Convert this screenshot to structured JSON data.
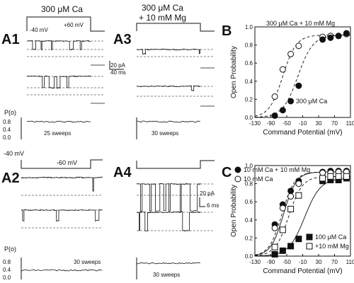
{
  "figure": {
    "panels": {
      "A1": {
        "letter": "A1",
        "condition": "300 μM Ca",
        "holding_label": "-40 mV",
        "step_label": "+60 mV",
        "po_label": "P(o)",
        "po_ticks": [
          "0.8",
          "0.4",
          "0.0"
        ],
        "sweeps_label": "25 sweeps",
        "scale_current": "20 pA",
        "scale_time": "40 ms"
      },
      "A3": {
        "letter": "A3",
        "condition_line1": "300 μM Ca",
        "condition_line2": "+ 10 mM Mg",
        "sweeps_label": "30 sweeps"
      },
      "A2": {
        "letter": "A2",
        "holding_label": "-40 mV",
        "step_label": "-60 mV",
        "po_label": "P(o)",
        "po_ticks": [
          "0.8",
          "0.4",
          "0.0"
        ],
        "sweeps_label": "30 sweeps"
      },
      "A4": {
        "letter": "A4",
        "sweeps_label": "30 sweeps",
        "scale_current": "20 pA",
        "scale_time": "6 ms"
      },
      "B": {
        "letter": "B"
      },
      "C": {
        "letter": "C"
      }
    }
  },
  "chart_data": [
    {
      "type": "scatter",
      "panel": "B",
      "xlabel": "Command Potential (mV)",
      "ylabel": "Open Probability",
      "xlim": [
        -130,
        110
      ],
      "ylim": [
        0,
        1.0
      ],
      "xticks": [
        -130,
        -90,
        -50,
        -10,
        30,
        70,
        110
      ],
      "xtick_labels": [
        "-130",
        "-90",
        "-50",
        "-10",
        "30",
        "70",
        "110"
      ],
      "yticks": [
        0.0,
        0.2,
        0.4,
        0.6,
        0.8,
        1.0
      ],
      "ytick_labels": [
        "0.0",
        "0.2",
        "0.4",
        "0.6",
        "0.8",
        "1.0"
      ],
      "annotations": [
        "300 μM Ca + 10 mM Mg",
        "300 μM Ca"
      ],
      "series": [
        {
          "name": "300 μM Ca + 10 mM Mg",
          "marker": "open-circle",
          "points": [
            [
              -80,
              0.23
            ],
            [
              -60,
              0.53
            ],
            [
              -40,
              0.7
            ],
            [
              -20,
              0.79
            ],
            [
              40,
              0.89
            ],
            [
              60,
              0.9
            ],
            [
              80,
              0.9
            ],
            [
              100,
              0.92
            ]
          ],
          "fit": {
            "v_half": -60,
            "slope": 17,
            "max": 0.91,
            "dash": true
          }
        },
        {
          "name": "300 μM Ca",
          "marker": "filled-circle",
          "points": [
            [
              -80,
              0.02
            ],
            [
              -60,
              0.08
            ],
            [
              -40,
              0.18
            ],
            [
              -20,
              0.35
            ],
            [
              40,
              0.86
            ],
            [
              60,
              0.88
            ],
            [
              80,
              0.9
            ],
            [
              100,
              0.93
            ]
          ],
          "fit": {
            "v_half": -22,
            "slope": 19,
            "max": 0.91,
            "dash": true
          }
        }
      ]
    },
    {
      "type": "scatter",
      "panel": "C",
      "xlabel": "Command Potential (mV)",
      "ylabel": "Open Probability",
      "xlim": [
        -130,
        110
      ],
      "ylim": [
        0,
        1.0
      ],
      "xticks": [
        -130,
        -90,
        -50,
        -10,
        30,
        70,
        110
      ],
      "xtick_labels": [
        "-130",
        "-90",
        "-50",
        "-10",
        "30",
        "70",
        "110"
      ],
      "yticks": [
        0.0,
        0.2,
        0.4,
        0.6,
        0.8,
        1.0
      ],
      "ytick_labels": [
        "0.0",
        "0.2",
        "0.4",
        "0.6",
        "0.8",
        "1.0"
      ],
      "legend": [
        "10 mM Ca + 10 mM Mg",
        "10 mM Ca",
        "100 μM Ca",
        "+10 mM Mg"
      ],
      "series": [
        {
          "name": "10 mM Ca + 10 mM Mg",
          "marker": "filled-circle",
          "points": [
            [
              -80,
              0.35
            ],
            [
              -60,
              0.57
            ],
            [
              -40,
              0.72
            ],
            [
              -20,
              0.83
            ],
            [
              40,
              0.93
            ],
            [
              60,
              0.94
            ],
            [
              80,
              0.94
            ],
            [
              100,
              0.94
            ]
          ],
          "fit": {
            "v_half": -62,
            "slope": 16,
            "max": 0.93,
            "dash": true
          }
        },
        {
          "name": "10 mM Ca",
          "marker": "open-circle",
          "points": [
            [
              -80,
              0.31
            ],
            [
              -60,
              0.53
            ],
            [
              -40,
              0.66
            ],
            [
              -20,
              0.8
            ],
            [
              40,
              0.92
            ],
            [
              60,
              0.92
            ],
            [
              80,
              0.93
            ],
            [
              100,
              0.93
            ]
          ],
          "fit": {
            "v_half": -58,
            "slope": 16,
            "max": 0.93,
            "dash": false
          }
        },
        {
          "name": "100 μM Ca",
          "marker": "filled-square",
          "points": [
            [
              -80,
              0.02
            ],
            [
              -60,
              0.06
            ],
            [
              -40,
              0.11
            ],
            [
              -20,
              0.19
            ],
            [
              40,
              0.83
            ],
            [
              60,
              0.84
            ],
            [
              80,
              0.84
            ],
            [
              100,
              0.86
            ]
          ],
          "fit": {
            "v_half": -5,
            "slope": 20,
            "max": 0.86,
            "dash": false
          }
        },
        {
          "name": "+10 mM Mg",
          "marker": "open-square",
          "points": [
            [
              -80,
              0.1
            ],
            [
              -60,
              0.29
            ],
            [
              -40,
              0.52
            ],
            [
              -20,
              0.67
            ],
            [
              40,
              0.86
            ],
            [
              60,
              0.88
            ],
            [
              80,
              0.88
            ],
            [
              100,
              0.88
            ]
          ],
          "fit": {
            "v_half": -45,
            "slope": 17,
            "max": 0.88,
            "dash": true
          }
        }
      ]
    }
  ]
}
